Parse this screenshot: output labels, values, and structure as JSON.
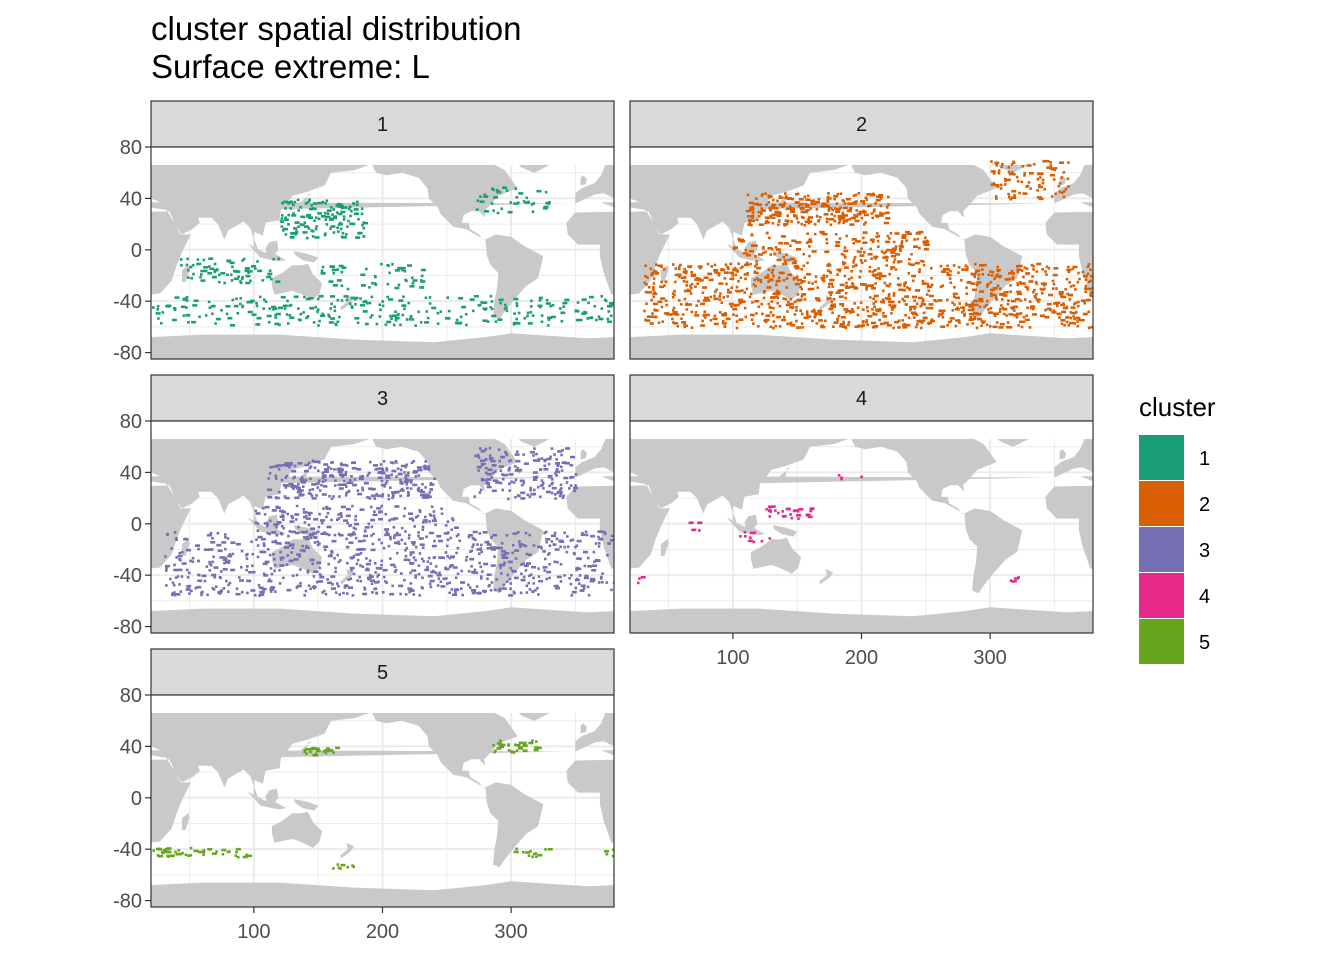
{
  "title": "cluster spatial distribution",
  "subtitle": "Surface extreme: L",
  "colors": {
    "land": "#c9c9c9",
    "grid": "#ebebeb",
    "strip_bg": "#d9d9d9",
    "frame": "#333333",
    "clusters": {
      "1": "#1b9e77",
      "2": "#d95f02",
      "3": "#7570b3",
      "4": "#e7298a",
      "5": "#66a61e"
    }
  },
  "chart_data": {
    "type": "scatter",
    "chart_subtype": "faceted geographic raster map",
    "title": "cluster spatial distribution",
    "subtitle": "Surface extreme: L",
    "xlabel": "",
    "ylabel": "",
    "xlim": [
      20,
      380
    ],
    "ylim": [
      -85,
      80
    ],
    "x_ticks": [
      "100",
      "200",
      "300"
    ],
    "y_ticks": [
      "80",
      "40",
      "0",
      "-40",
      "-80"
    ],
    "facets": [
      "1",
      "2",
      "3",
      "4",
      "5"
    ],
    "legend": {
      "title": "cluster",
      "position": "right",
      "entries": [
        "1",
        "2",
        "3",
        "4",
        "5"
      ]
    },
    "grid": true,
    "series": [
      {
        "name": "1",
        "density": "moderate",
        "regions": [
          {
            "lon": [
              120,
              185
            ],
            "lat": [
              10,
              40
            ],
            "n": 140
          },
          {
            "lon": [
              270,
              330
            ],
            "lat": [
              28,
              50
            ],
            "n": 40
          },
          {
            "lon": [
              20,
              380
            ],
            "lat": [
              -58,
              -35
            ],
            "n": 300
          },
          {
            "lon": [
              40,
              120
            ],
            "lat": [
              -25,
              -5
            ],
            "n": 70
          },
          {
            "lon": [
              150,
              230
            ],
            "lat": [
              -30,
              -10
            ],
            "n": 50
          }
        ]
      },
      {
        "name": "2",
        "density": "high",
        "regions": [
          {
            "lon": [
              110,
              220
            ],
            "lat": [
              20,
              45
            ],
            "n": 260
          },
          {
            "lon": [
              300,
              360
            ],
            "lat": [
              40,
              70
            ],
            "n": 90
          },
          {
            "lon": [
              30,
              380
            ],
            "lat": [
              -60,
              -10
            ],
            "n": 1000
          },
          {
            "lon": [
              100,
              250
            ],
            "lat": [
              -10,
              15
            ],
            "n": 170
          }
        ]
      },
      {
        "name": "3",
        "density": "high",
        "regions": [
          {
            "lon": [
              110,
              240
            ],
            "lat": [
              20,
              50
            ],
            "n": 280
          },
          {
            "lon": [
              270,
              350
            ],
            "lat": [
              20,
              60
            ],
            "n": 180
          },
          {
            "lon": [
              30,
              380
            ],
            "lat": [
              -55,
              -5
            ],
            "n": 750
          },
          {
            "lon": [
              100,
              260
            ],
            "lat": [
              -10,
              15
            ],
            "n": 160
          }
        ]
      },
      {
        "name": "4",
        "density": "sparse",
        "regions": [
          {
            "lon": [
              125,
              160
            ],
            "lat": [
              5,
              15
            ],
            "n": 30
          },
          {
            "lon": [
              95,
              130
            ],
            "lat": [
              -15,
              -5
            ],
            "n": 10
          },
          {
            "lon": [
              310,
              330
            ],
            "lat": [
              -45,
              -40
            ],
            "n": 5
          },
          {
            "lon": [
              25,
              35
            ],
            "lat": [
              -45,
              -40
            ],
            "n": 3
          },
          {
            "lon": [
              55,
              75
            ],
            "lat": [
              -5,
              5
            ],
            "n": 4
          },
          {
            "lon": [
              180,
              200
            ],
            "lat": [
              35,
              40
            ],
            "n": 4
          }
        ]
      },
      {
        "name": "5",
        "density": "sparse",
        "regions": [
          {
            "lon": [
              135,
              165
            ],
            "lat": [
              34,
              40
            ],
            "n": 25
          },
          {
            "lon": [
              285,
              320
            ],
            "lat": [
              36,
              46
            ],
            "n": 35
          },
          {
            "lon": [
              20,
              95
            ],
            "lat": [
              -46,
              -38
            ],
            "n": 45
          },
          {
            "lon": [
              160,
              190
            ],
            "lat": [
              -55,
              -50
            ],
            "n": 8
          },
          {
            "lon": [
              300,
              330
            ],
            "lat": [
              -45,
              -38
            ],
            "n": 15
          },
          {
            "lon": [
              370,
              380
            ],
            "lat": [
              -45,
              -38
            ],
            "n": 5
          }
        ]
      }
    ]
  }
}
